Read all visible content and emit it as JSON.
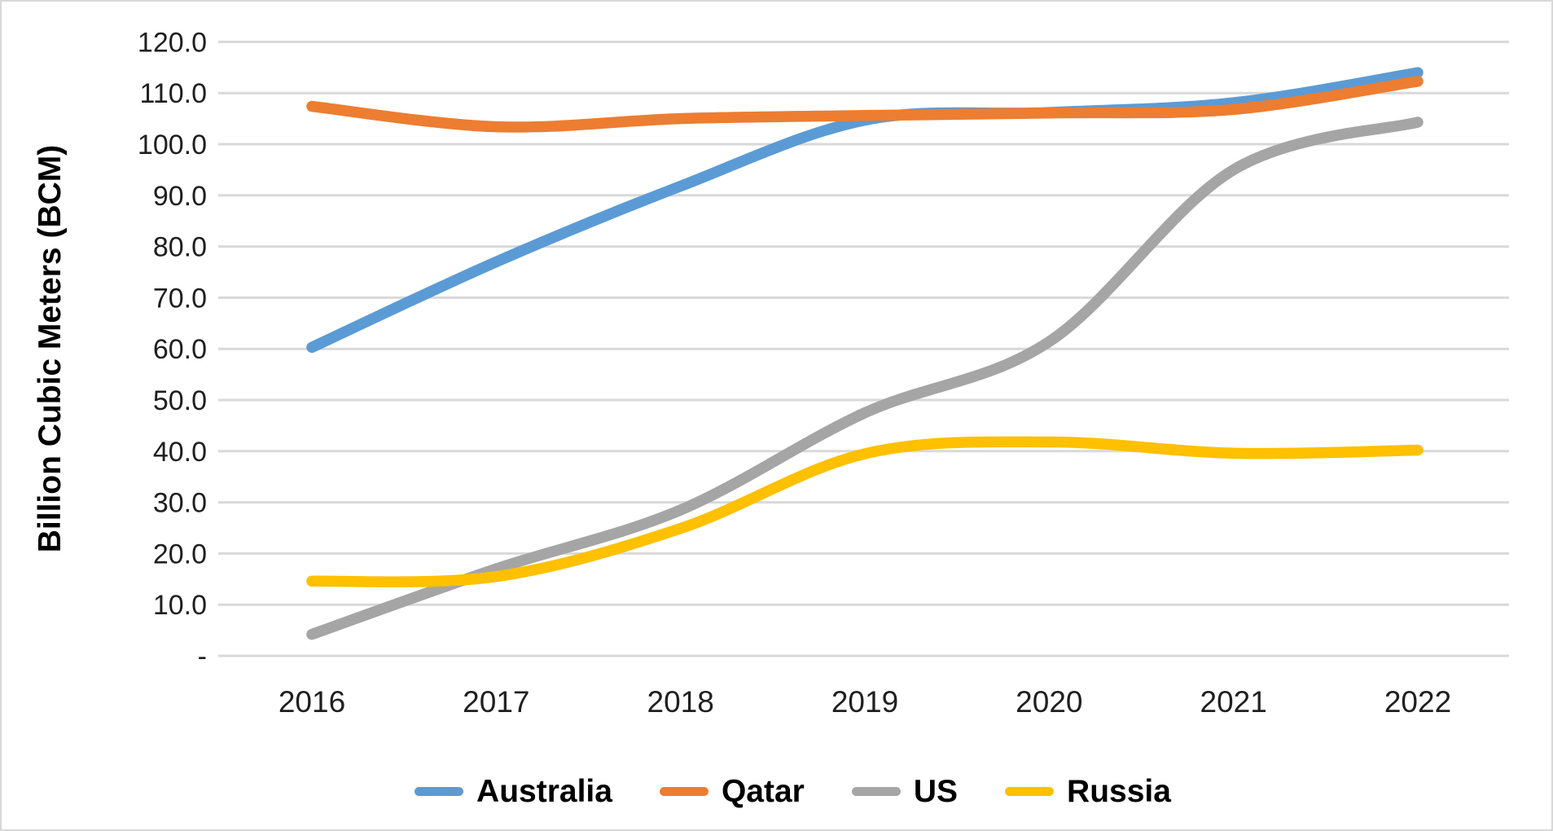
{
  "chart_data": {
    "type": "line",
    "title": "",
    "xlabel": "",
    "ylabel": "Billion Cubic Meters (BCM)",
    "categories": [
      "2016",
      "2017",
      "2018",
      "2019",
      "2020",
      "2021",
      "2022"
    ],
    "series": [
      {
        "name": "Australia",
        "color": "#5B9BD5",
        "values": [
          60.3,
          77.0,
          91.8,
          104.7,
          106.2,
          108.1,
          114.0
        ]
      },
      {
        "name": "Qatar",
        "color": "#ED7D31",
        "values": [
          107.4,
          103.4,
          105.0,
          105.6,
          106.1,
          106.8,
          112.3
        ]
      },
      {
        "name": "US",
        "color": "#A5A5A5",
        "values": [
          4.2,
          17.0,
          28.5,
          47.5,
          61.4,
          95.0,
          104.3
        ]
      },
      {
        "name": "Russia",
        "color": "#FFC000",
        "values": [
          14.6,
          15.5,
          24.9,
          39.5,
          41.8,
          39.6,
          40.2
        ]
      }
    ],
    "ylim": [
      0,
      120
    ],
    "ytick_step": 10,
    "ytick_format": "one-decimal",
    "zero_tick_label": "-",
    "grid": true,
    "gridline_color": "#D9D9D9",
    "tick_text_color": "#1f1f1f",
    "legend_position": "bottom",
    "legend_labels": [
      "Australia",
      "Qatar",
      "US",
      "Russia"
    ],
    "line_style": "smoothed"
  }
}
